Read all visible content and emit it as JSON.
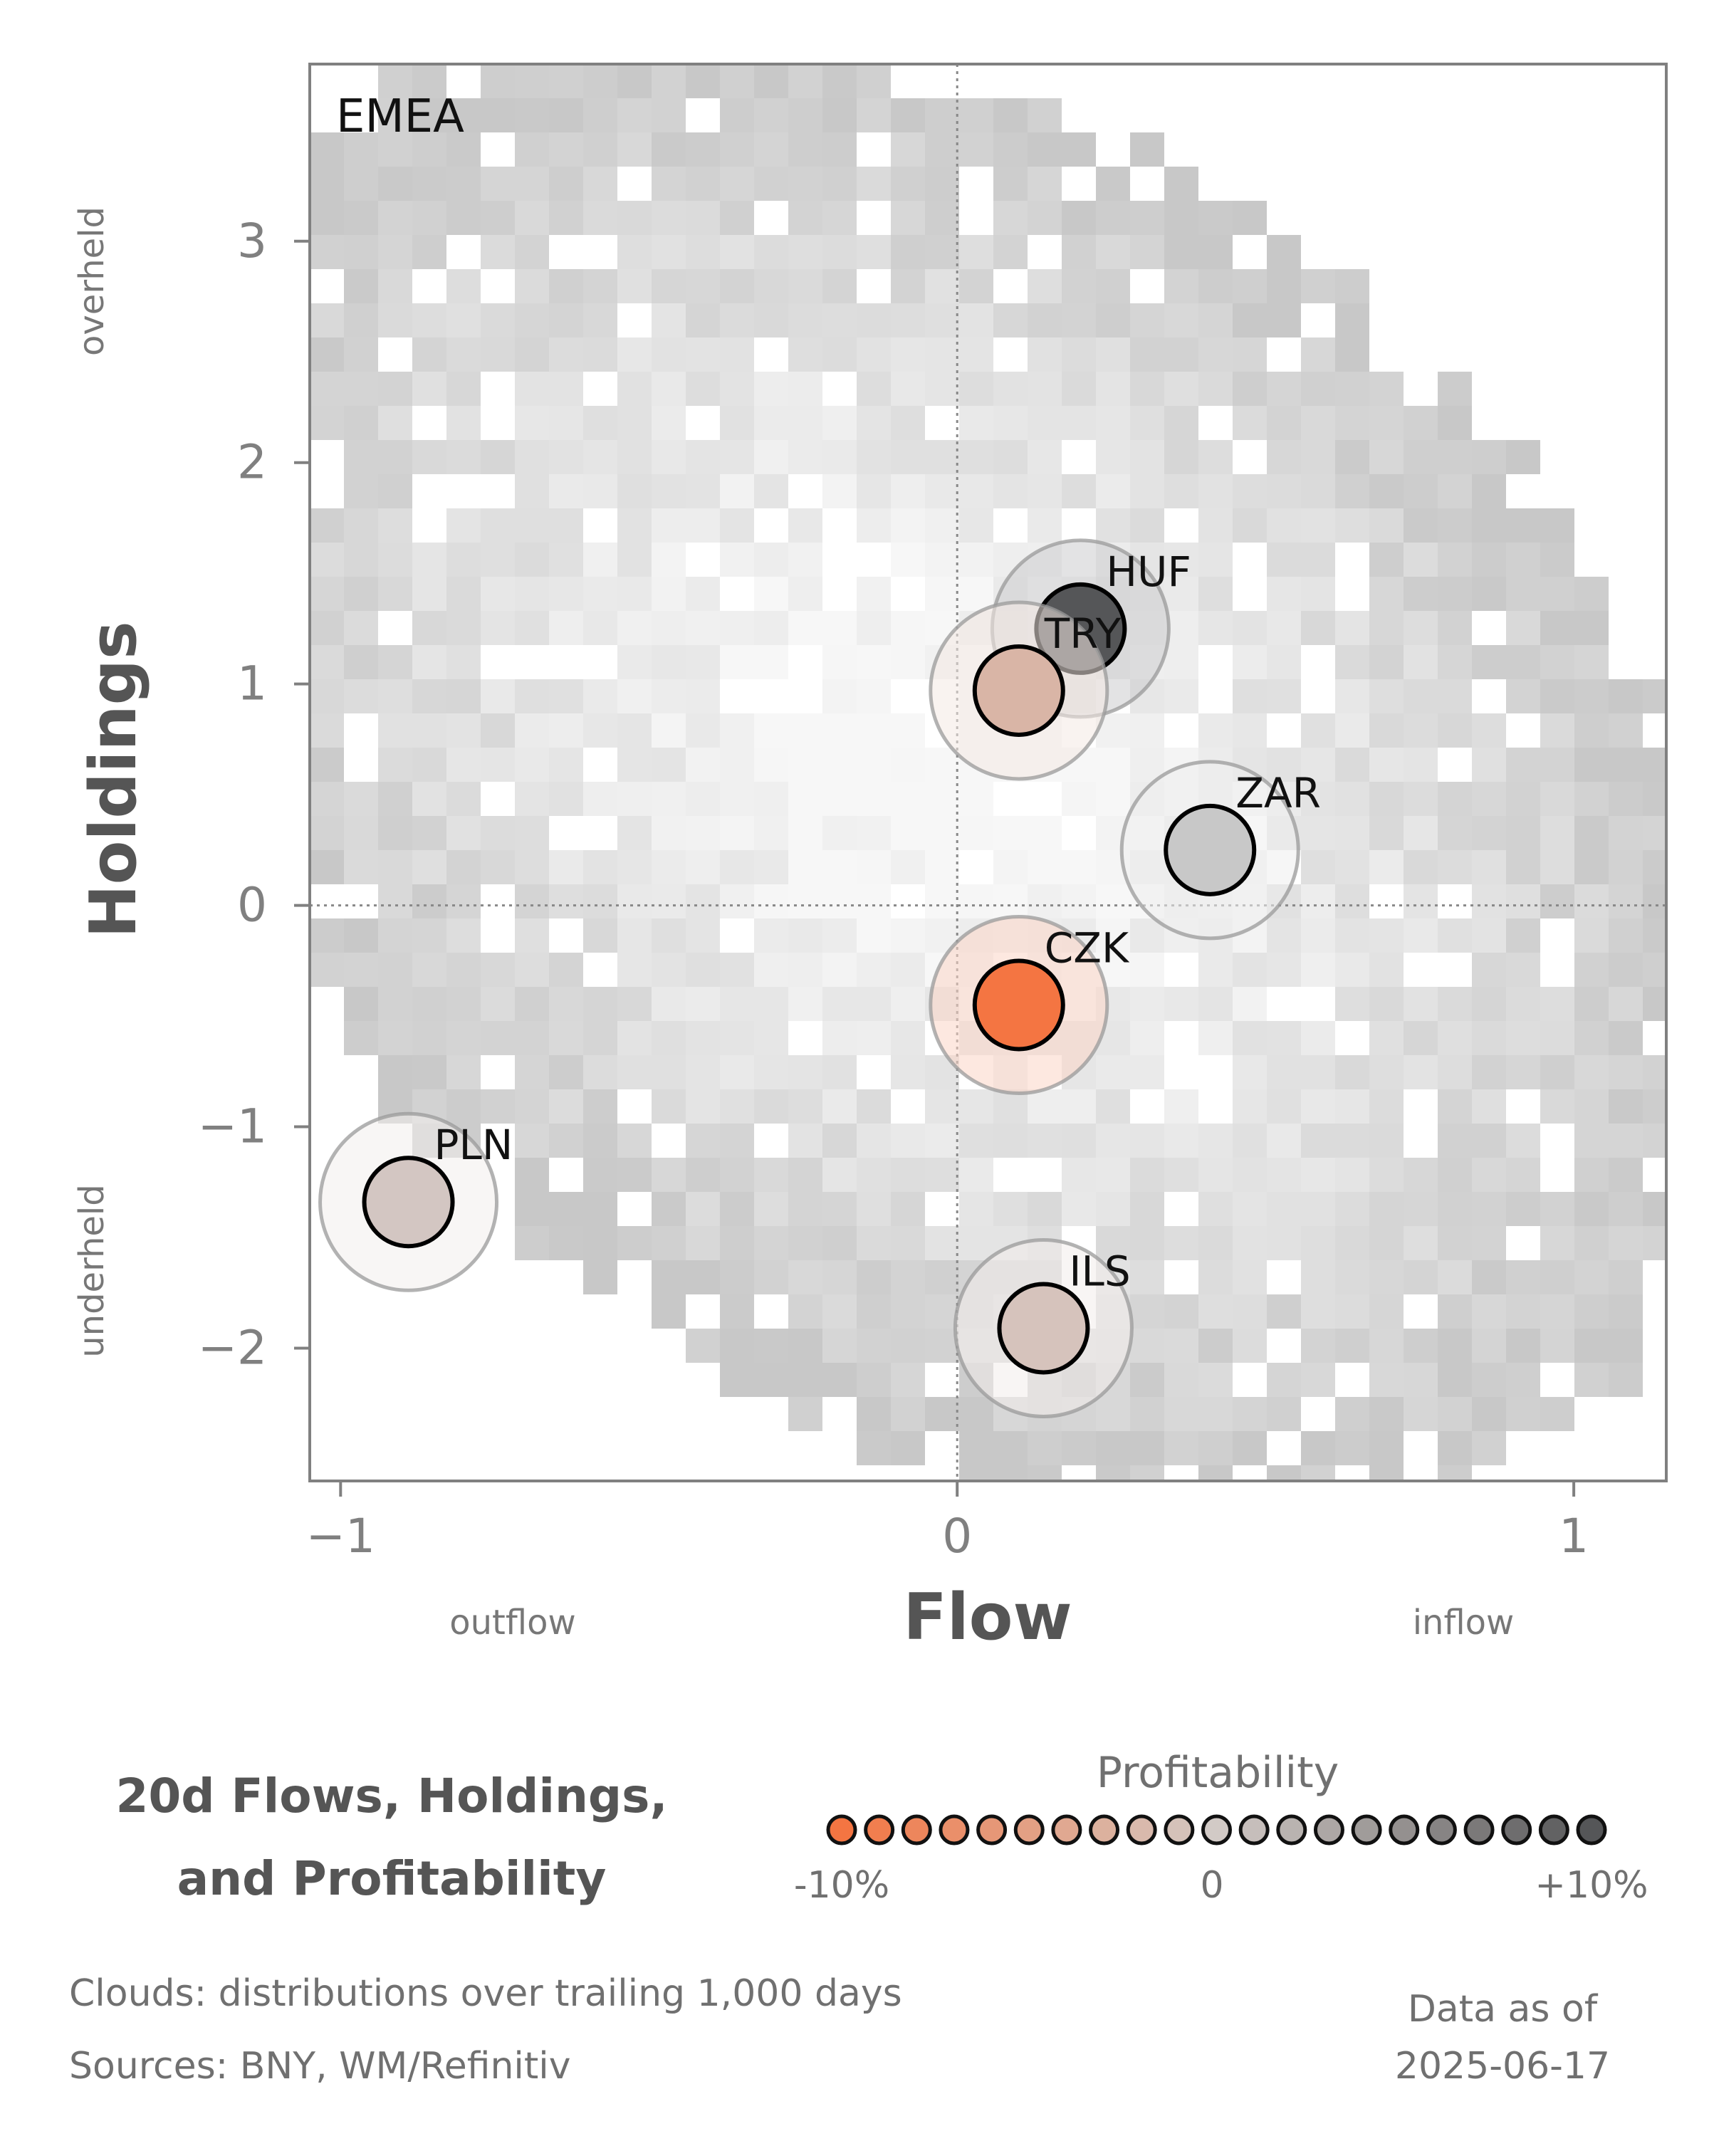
{
  "chart_data": {
    "type": "scatter",
    "panel_label": "EMEA",
    "xlabel": "Flow",
    "ylabel": "Holdings",
    "x_side_labels": {
      "left": "outflow",
      "right": "inflow"
    },
    "y_side_labels": {
      "top": "overheld",
      "bottom": "underheld"
    },
    "xlim": [
      -1.05,
      1.15
    ],
    "ylim": [
      -2.6,
      3.8
    ],
    "x_ticks": [
      {
        "value": -1,
        "label": "−1"
      },
      {
        "value": 0,
        "label": "0"
      },
      {
        "value": 1,
        "label": "1"
      }
    ],
    "y_ticks": [
      {
        "value": 3,
        "label": "3"
      },
      {
        "value": 2,
        "label": "2"
      },
      {
        "value": 1,
        "label": "1"
      },
      {
        "value": 0,
        "label": "0"
      },
      {
        "value": -1,
        "label": "−1"
      },
      {
        "value": -2,
        "label": "−2"
      }
    ],
    "points": [
      {
        "label": "HUF",
        "x": 0.2,
        "y": 1.25,
        "profitability": 0.1,
        "color": "#555658"
      },
      {
        "label": "TRY",
        "x": 0.1,
        "y": 0.97,
        "profitability": -0.035,
        "color": "#d9b5a6"
      },
      {
        "label": "ZAR",
        "x": 0.41,
        "y": 0.25,
        "profitability": 0.025,
        "color": "#c8c8c8"
      },
      {
        "label": "CZK",
        "x": 0.1,
        "y": -0.45,
        "profitability": -0.1,
        "color": "#f47542"
      },
      {
        "label": "PLN",
        "x": -0.89,
        "y": -1.34,
        "profitability": -0.005,
        "color": "#d3c6c2"
      },
      {
        "label": "ILS",
        "x": 0.14,
        "y": -1.91,
        "profitability": -0.01,
        "color": "#d6c3bc"
      }
    ],
    "legend": {
      "title": "Profitability",
      "tick_labels": [
        "-10%",
        "0",
        "+10%"
      ],
      "range": [
        -0.1,
        0.1
      ],
      "low_color": "#f47542",
      "mid_color": "#d2cac6",
      "high_color": "#555658"
    },
    "cloud_note": "Clouds:  distributions over trailing 1,000 days",
    "grid": false
  },
  "title": {
    "line1": "20d Flows, Holdings,",
    "line2": "and Profitability"
  },
  "footer": {
    "clouds": "Clouds:  distributions over trailing 1,000 days",
    "sources": "Sources:  BNY, WM/Refinitiv",
    "date_label": "Data as of",
    "date_value": "2025-06-17"
  }
}
